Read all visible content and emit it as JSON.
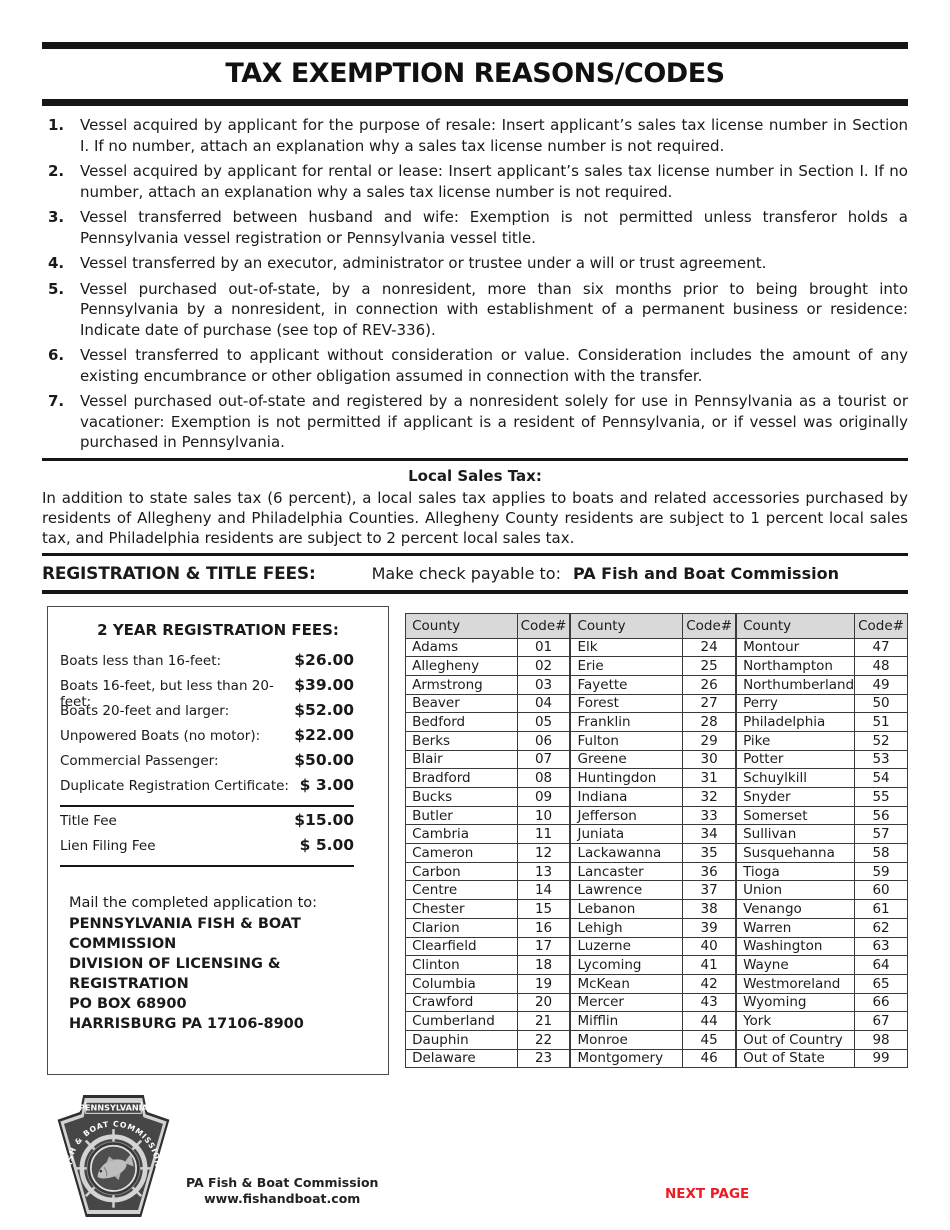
{
  "page": {
    "title": "TAX EXEMPTION REASONS/CODES",
    "next_page_label": "NEXT PAGE",
    "accent_red": "#ed1c24"
  },
  "exemption_reasons": [
    {
      "num": "1.",
      "text": "Vessel acquired by applicant for the purpose of resale: Insert applicant’s sales tax license number in Section I. If no number, attach an explanation why a sales tax license number is not required."
    },
    {
      "num": "2.",
      "text": "Vessel acquired by applicant for rental or lease: Insert applicant’s sales tax license number in Section I. If no number, attach an explanation why a sales tax license number is not required."
    },
    {
      "num": "3.",
      "text": "Vessel transferred between husband and wife: Exemption is not permitted unless transferor holds a Pennsylvania vessel registration or Pennsylvania vessel title."
    },
    {
      "num": "4.",
      "text": "Vessel transferred by an executor, administrator or trustee under a will or trust agreement."
    },
    {
      "num": "5.",
      "text": "Vessel purchased out-of-state, by a nonresident, more than six months prior to being brought into Pennsylvania by a nonresident, in connection with establishment of a permanent business or residence: Indicate date of purchase (see top of REV-336)."
    },
    {
      "num": "6.",
      "text": "Vessel transferred to applicant without consideration or value. Consideration includes the amount of any existing encumbrance or other obligation assumed in connection with the transfer."
    },
    {
      "num": "7.",
      "text": "Vessel purchased out-of-state and registered by a nonresident solely for use in Pennsylvania as a tourist or vacationer: Exemption is not permitted if applicant is a resident of Pennsylvania, or if vessel was originally purchased in Pennsylvania."
    }
  ],
  "local_sales_tax": {
    "heading": "Local Sales Tax:",
    "body": "In addition to state sales tax (6 percent), a local sales tax applies to boats and related accessories purchased by residents of Allegheny and Philadelphia Counties. Allegheny County residents are subject to 1 percent local sales tax, and Philadelphia residents are subject to 2 percent local sales tax."
  },
  "fees_section": {
    "heading": "REGISTRATION & TITLE FEES:",
    "payable_label": "Make check payable to:",
    "payable_to": "PA Fish and Boat Commission"
  },
  "fee_box": {
    "title": "2 YEAR REGISTRATION FEES:",
    "rows": [
      {
        "label": "Boats less than 16-feet:",
        "amount": "$26.00"
      },
      {
        "label": "Boats 16-feet, but less than 20-feet:",
        "amount": "$39.00"
      },
      {
        "label": "Boats 20-feet and larger:",
        "amount": "$52.00"
      },
      {
        "label": "Unpowered Boats (no motor):",
        "amount": "$22.00"
      },
      {
        "label": "Commercial Passenger:",
        "amount": "$50.00"
      },
      {
        "label": "Duplicate Registration Certificate:",
        "amount": "$ 3.00"
      }
    ],
    "extra_rows": [
      {
        "label": "Title Fee",
        "amount": "$15.00"
      },
      {
        "label": "Lien Filing Fee",
        "amount": "$ 5.00"
      }
    ],
    "mail_label": "Mail the completed application to:",
    "mail_address": [
      "PENNSYLVANIA FISH & BOAT COMMISSION",
      "DIVISION OF LICENSING & REGISTRATION",
      "PO BOX 68900",
      "HARRISBURG PA 17106-8900"
    ]
  },
  "county_table": {
    "col_headers": [
      "County",
      "Code#"
    ],
    "groups": [
      [
        [
          "Adams",
          "01"
        ],
        [
          "Allegheny",
          "02"
        ],
        [
          "Armstrong",
          "03"
        ],
        [
          "Beaver",
          "04"
        ],
        [
          "Bedford",
          "05"
        ],
        [
          "Berks",
          "06"
        ],
        [
          "Blair",
          "07"
        ],
        [
          "Bradford",
          "08"
        ],
        [
          "Bucks",
          "09"
        ],
        [
          "Butler",
          "10"
        ],
        [
          "Cambria",
          "11"
        ],
        [
          "Cameron",
          "12"
        ],
        [
          "Carbon",
          "13"
        ],
        [
          "Centre",
          "14"
        ],
        [
          "Chester",
          "15"
        ],
        [
          "Clarion",
          "16"
        ],
        [
          "Clearfield",
          "17"
        ],
        [
          "Clinton",
          "18"
        ],
        [
          "Columbia",
          "19"
        ],
        [
          "Crawford",
          "20"
        ],
        [
          "Cumberland",
          "21"
        ],
        [
          "Dauphin",
          "22"
        ],
        [
          "Delaware",
          "23"
        ]
      ],
      [
        [
          "Elk",
          "24"
        ],
        [
          "Erie",
          "25"
        ],
        [
          "Fayette",
          "26"
        ],
        [
          "Forest",
          "27"
        ],
        [
          "Franklin",
          "28"
        ],
        [
          "Fulton",
          "29"
        ],
        [
          "Greene",
          "30"
        ],
        [
          "Huntingdon",
          "31"
        ],
        [
          "Indiana",
          "32"
        ],
        [
          "Jefferson",
          "33"
        ],
        [
          "Juniata",
          "34"
        ],
        [
          "Lackawanna",
          "35"
        ],
        [
          "Lancaster",
          "36"
        ],
        [
          "Lawrence",
          "37"
        ],
        [
          "Lebanon",
          "38"
        ],
        [
          "Lehigh",
          "39"
        ],
        [
          "Luzerne",
          "40"
        ],
        [
          "Lycoming",
          "41"
        ],
        [
          "McKean",
          "42"
        ],
        [
          "Mercer",
          "43"
        ],
        [
          "Mifflin",
          "44"
        ],
        [
          "Monroe",
          "45"
        ],
        [
          "Montgomery",
          "46"
        ]
      ],
      [
        [
          "Montour",
          "47"
        ],
        [
          "Northampton",
          "48"
        ],
        [
          "Northumberland",
          "49"
        ],
        [
          "Perry",
          "50"
        ],
        [
          "Philadelphia",
          "51"
        ],
        [
          "Pike",
          "52"
        ],
        [
          "Potter",
          "53"
        ],
        [
          "Schuylkill",
          "54"
        ],
        [
          "Snyder",
          "55"
        ],
        [
          "Somerset",
          "56"
        ],
        [
          "Sullivan",
          "57"
        ],
        [
          "Susquehanna",
          "58"
        ],
        [
          "Tioga",
          "59"
        ],
        [
          "Union",
          "60"
        ],
        [
          "Venango",
          "61"
        ],
        [
          "Warren",
          "62"
        ],
        [
          "Washington",
          "63"
        ],
        [
          "Wayne",
          "64"
        ],
        [
          "Westmoreland",
          "65"
        ],
        [
          "Wyoming",
          "66"
        ],
        [
          "York",
          "67"
        ],
        [
          "Out of Country",
          "98"
        ],
        [
          "Out of State",
          "99"
        ]
      ]
    ]
  },
  "footer": {
    "logo_state": "PENNSYLVANIA",
    "logo_arc_text": "FISH & BOAT COMMISSION",
    "org_name": "PA Fish & Boat Commission",
    "website": "www.fishandboat.com"
  }
}
